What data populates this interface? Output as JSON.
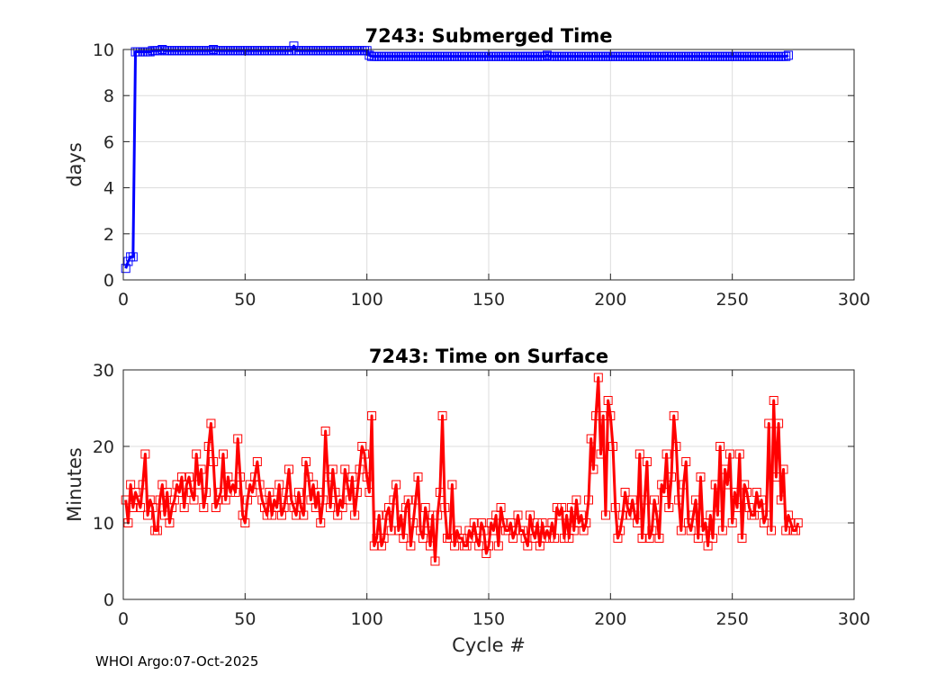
{
  "footer": "WHOI Argo:07-Oct-2025",
  "chart_data": [
    {
      "type": "line",
      "title": "7243: Submerged Time",
      "xlabel": "",
      "ylabel": "days",
      "xlim": [
        0,
        300
      ],
      "ylim": [
        0,
        10
      ],
      "xticks": [
        0,
        50,
        100,
        150,
        200,
        250,
        300
      ],
      "yticks": [
        0,
        2,
        4,
        6,
        8,
        10
      ],
      "grid": true,
      "marker": "square",
      "color": "#0000ff",
      "series": [
        {
          "x_start": 1,
          "values": [
            0.5,
            0.8,
            1.0,
            1.0,
            9.9,
            9.9,
            9.9,
            9.9,
            9.9,
            9.9,
            9.9,
            9.95,
            9.95,
            9.95,
            9.95,
            10.0,
            9.95,
            9.95,
            9.95,
            9.95,
            9.95,
            9.95,
            9.95,
            9.95,
            9.95,
            9.95,
            9.95,
            9.95,
            9.95,
            9.95,
            9.95,
            9.95,
            9.95,
            9.95,
            9.95,
            9.95,
            10.0,
            9.95,
            9.95,
            9.95,
            9.95,
            9.95,
            9.95,
            9.95,
            9.95,
            9.95,
            9.95,
            9.95,
            9.95,
            9.95,
            9.95,
            9.95,
            9.95,
            9.95,
            9.95,
            9.95,
            9.95,
            9.95,
            9.95,
            9.95,
            9.95,
            9.95,
            9.95,
            9.95,
            9.95,
            9.95,
            9.95,
            9.95,
            9.95,
            10.15,
            9.95,
            9.95,
            9.95,
            9.95,
            9.95,
            9.95,
            9.95,
            9.95,
            9.95,
            9.95,
            9.95,
            9.95,
            9.95,
            9.95,
            9.95,
            9.95,
            9.95,
            9.95,
            9.95,
            9.95,
            9.95,
            9.95,
            9.95,
            9.95,
            9.95,
            9.95,
            9.95,
            9.95,
            9.95,
            9.95,
            9.75,
            9.7,
            9.7,
            9.7,
            9.7,
            9.7,
            9.7,
            9.7,
            9.7,
            9.7,
            9.7,
            9.7,
            9.7,
            9.7,
            9.7,
            9.7,
            9.7,
            9.7,
            9.7,
            9.7,
            9.7,
            9.7,
            9.7,
            9.7,
            9.7,
            9.7,
            9.7,
            9.7,
            9.7,
            9.7,
            9.7,
            9.7,
            9.7,
            9.7,
            9.7,
            9.7,
            9.7,
            9.7,
            9.7,
            9.7,
            9.7,
            9.7,
            9.7,
            9.7,
            9.7,
            9.7,
            9.7,
            9.7,
            9.7,
            9.7,
            9.7,
            9.7,
            9.7,
            9.7,
            9.7,
            9.7,
            9.7,
            9.7,
            9.7,
            9.7,
            9.7,
            9.7,
            9.7,
            9.7,
            9.7,
            9.7,
            9.7,
            9.7,
            9.7,
            9.7,
            9.7,
            9.7,
            9.7,
            9.75,
            9.7,
            9.7,
            9.7,
            9.7,
            9.7,
            9.7,
            9.7,
            9.7,
            9.7,
            9.7,
            9.7,
            9.7,
            9.7,
            9.7,
            9.7,
            9.7,
            9.7,
            9.7,
            9.7,
            9.7,
            9.7,
            9.7,
            9.7,
            9.7,
            9.7,
            9.7,
            9.7,
            9.7,
            9.7,
            9.7,
            9.7,
            9.7,
            9.7,
            9.7,
            9.7,
            9.7,
            9.7,
            9.7,
            9.7,
            9.7,
            9.7,
            9.7,
            9.7,
            9.7,
            9.7,
            9.7,
            9.7,
            9.7,
            9.7,
            9.7,
            9.7,
            9.7,
            9.7,
            9.7,
            9.7,
            9.7,
            9.7,
            9.7,
            9.7,
            9.7,
            9.7,
            9.7,
            9.7,
            9.7,
            9.7,
            9.7,
            9.7,
            9.7,
            9.7,
            9.7,
            9.7,
            9.7,
            9.7,
            9.7,
            9.7,
            9.7,
            9.7,
            9.7,
            9.7,
            9.7,
            9.7,
            9.7,
            9.7,
            9.7,
            9.7,
            9.7,
            9.7,
            9.7,
            9.7,
            9.7,
            9.7,
            9.7,
            9.7,
            9.7,
            9.7,
            9.7,
            9.7,
            9.7,
            9.75
          ]
        }
      ]
    },
    {
      "type": "line",
      "title": "7243: Time on Surface",
      "xlabel": "Cycle #",
      "ylabel": "Minutes",
      "xlim": [
        0,
        300
      ],
      "ylim": [
        0,
        30
      ],
      "xticks": [
        0,
        50,
        100,
        150,
        200,
        250,
        300
      ],
      "yticks": [
        0,
        10,
        20,
        30
      ],
      "grid": true,
      "marker": "square",
      "color": "#ff0000",
      "series": [
        {
          "x_start": 1,
          "values": [
            13,
            10,
            15,
            12,
            14,
            13,
            12,
            15,
            19,
            11,
            13,
            12,
            9,
            9,
            13,
            15,
            11,
            14,
            10,
            12,
            13,
            15,
            14,
            16,
            12,
            15,
            16,
            14,
            13,
            19,
            15,
            17,
            12,
            14,
            20,
            23,
            18,
            12,
            13,
            14,
            19,
            13,
            16,
            14,
            15,
            14,
            21,
            16,
            11,
            10,
            13,
            15,
            14,
            16,
            18,
            15,
            13,
            12,
            11,
            14,
            11,
            13,
            12,
            15,
            11,
            12,
            14,
            17,
            13,
            12,
            11,
            14,
            12,
            11,
            18,
            16,
            13,
            15,
            12,
            14,
            10,
            13,
            22,
            16,
            12,
            17,
            14,
            11,
            13,
            12,
            17,
            15,
            13,
            16,
            11,
            14,
            17,
            20,
            19,
            16,
            14,
            24,
            7,
            8,
            11,
            7,
            8,
            11,
            12,
            9,
            13,
            15,
            9,
            11,
            8,
            12,
            13,
            7,
            10,
            13,
            16,
            9,
            8,
            12,
            10,
            7,
            11,
            5,
            11,
            14,
            24,
            12,
            8,
            8,
            15,
            7,
            9,
            8,
            8,
            7,
            7,
            9,
            8,
            10,
            8,
            7,
            10,
            9,
            6,
            7,
            10,
            9,
            11,
            7,
            12,
            10,
            9,
            9,
            10,
            8,
            9,
            11,
            9,
            9,
            8,
            7,
            11,
            9,
            8,
            10,
            7,
            10,
            8,
            9,
            8,
            10,
            8,
            12,
            11,
            12,
            8,
            11,
            8,
            12,
            9,
            13,
            10,
            11,
            9,
            10,
            13,
            21,
            17,
            24,
            29,
            19,
            24,
            11,
            26,
            24,
            20,
            12,
            8,
            9,
            11,
            14,
            12,
            11,
            13,
            11,
            10,
            19,
            8,
            13,
            18,
            8,
            9,
            13,
            11,
            8,
            15,
            14,
            19,
            12,
            16,
            24,
            20,
            13,
            9,
            15,
            18,
            10,
            9,
            11,
            13,
            8,
            16,
            9,
            10,
            7,
            11,
            8,
            15,
            11,
            20,
            9,
            17,
            15,
            19,
            10,
            14,
            12,
            19,
            8,
            15,
            14,
            12,
            11,
            11,
            14,
            12,
            13,
            10,
            11,
            23,
            9,
            26,
            16,
            23,
            13,
            17,
            9,
            11,
            10,
            9,
            9,
            10
          ]
        }
      ]
    }
  ]
}
